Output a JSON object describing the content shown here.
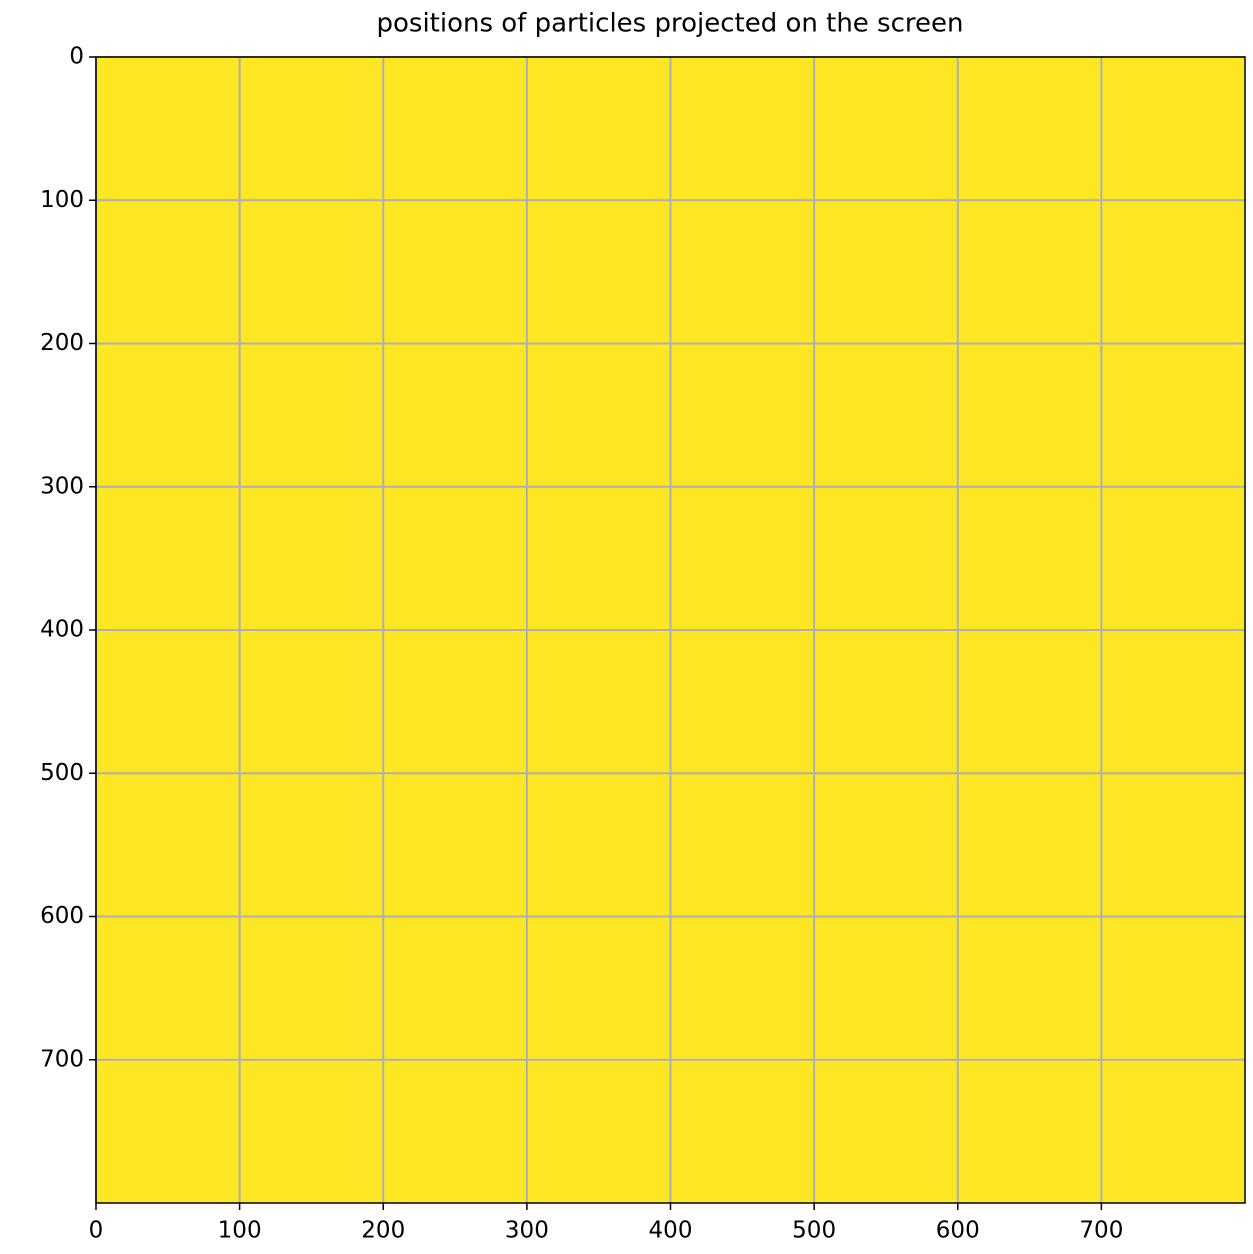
{
  "chart_data": {
    "type": "heatmap",
    "title": "positions of particles projected on the screen",
    "color": "#fde725",
    "xlim": [
      0,
      800
    ],
    "ylim": [
      800,
      0
    ],
    "xticks": [
      0,
      100,
      200,
      300,
      400,
      500,
      600,
      700
    ],
    "yticks": [
      0,
      100,
      200,
      300,
      400,
      500,
      600,
      700
    ],
    "grid": true
  }
}
